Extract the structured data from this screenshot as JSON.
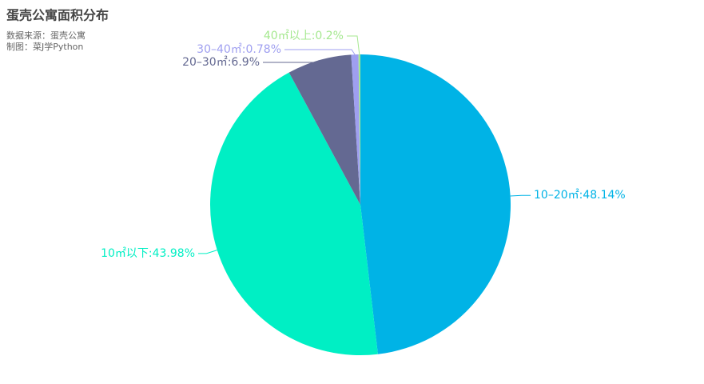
{
  "chart_data": {
    "type": "pie",
    "title": "蛋壳公寓面积分布",
    "subtitle": [
      "数据来源：蛋壳公寓",
      "制图：菜J学Python"
    ],
    "values": [
      48.14,
      43.98,
      6.9,
      0.78,
      0.2
    ],
    "value_labels": [
      "10–20㎡:48.14%",
      "10㎡以下:43.98%",
      "20–30㎡:6.9%",
      "30–40㎡:0.78%",
      "40㎡以上:0.2%"
    ],
    "colors": [
      "#00b3e6",
      "#00efc4",
      "#646992",
      "#9f9ff0",
      "#a5e88f"
    ]
  }
}
